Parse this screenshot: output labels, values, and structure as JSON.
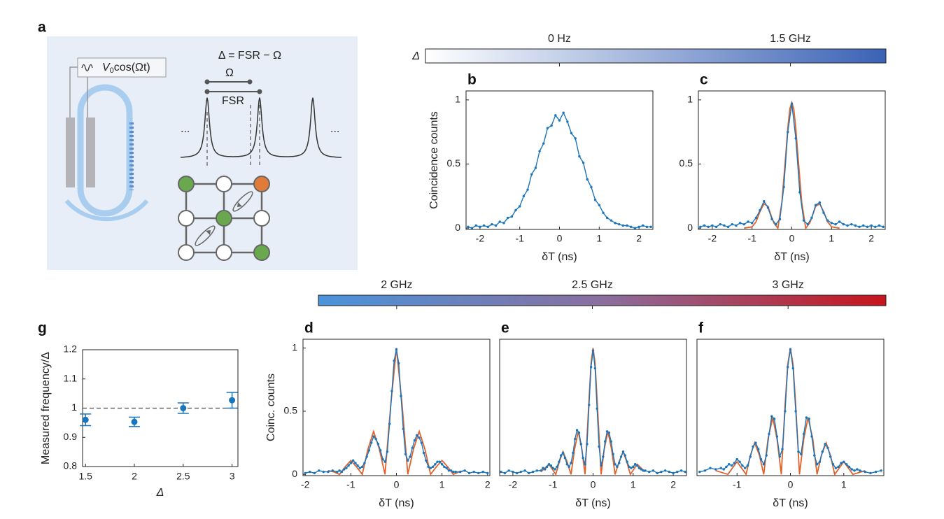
{
  "diagram": {
    "label": "a",
    "modulation_symbol": "V",
    "modulation_subscript": "0",
    "modulation_text": "cos(Ωt)",
    "detuning": "Δ = FSR − Ω",
    "omega": "Ω",
    "fsr": "FSR",
    "ellipsis_left": "...",
    "ellipsis_right": "..."
  },
  "chart_data": [
    {
      "type": "colorbar",
      "title": "Δ",
      "colors": [
        "#ffffff",
        "#3a62b5"
      ],
      "xlim": [
        -0.87,
        2.12
      ],
      "xticks": [
        {
          "value": 0,
          "label": "0 Hz"
        },
        {
          "value": 1.5,
          "label": "1.5 GHz"
        }
      ]
    },
    {
      "type": "line",
      "label": "b",
      "xlabel": "δT (ns)",
      "ylabel": "Coincidence counts",
      "xlim": [
        -2.35,
        2.35
      ],
      "ylim": [
        -0.01,
        1.07
      ],
      "xticks": [
        -2,
        -1,
        0,
        1,
        2
      ],
      "yticks": [
        0,
        0.5,
        1
      ],
      "series": [
        {
          "color": "#1b75bb",
          "markers": true,
          "x": [
            -2.3,
            -2.2,
            -2.1,
            -2,
            -1.9,
            -1.8,
            -1.7,
            -1.6,
            -1.5,
            -1.4,
            -1.3,
            -1.2,
            -1.1,
            -1,
            -0.9,
            -0.8,
            -0.7,
            -0.6,
            -0.5,
            -0.4,
            -0.3,
            -0.2,
            -0.1,
            0,
            0.1,
            0.2,
            0.3,
            0.4,
            0.5,
            0.6,
            0.7,
            0.8,
            0.9,
            1,
            1.1,
            1.2,
            1.3,
            1.4,
            1.5,
            1.6,
            1.7,
            1.8,
            1.9,
            2,
            2.1,
            2.2,
            2.3
          ],
          "values": [
            0.01,
            0,
            0.02,
            0.01,
            0.02,
            0.01,
            0.03,
            0.02,
            0.05,
            0.04,
            0.08,
            0.09,
            0.14,
            0.17,
            0.25,
            0.3,
            0.42,
            0.47,
            0.6,
            0.66,
            0.78,
            0.8,
            0.88,
            0.84,
            0.9,
            0.83,
            0.74,
            0.7,
            0.56,
            0.51,
            0.38,
            0.32,
            0.22,
            0.18,
            0.12,
            0.08,
            0.06,
            0.04,
            0.03,
            0.02,
            0.02,
            0.01,
            0,
            0.01,
            0.02,
            0.01,
            0.01
          ]
        }
      ]
    },
    {
      "type": "line",
      "label": "c",
      "xlabel": "δT (ns)",
      "xlim": [
        -2.35,
        2.35
      ],
      "ylim": [
        -0.01,
        1.07
      ],
      "xticks": [
        -2,
        -1,
        0,
        1,
        2
      ],
      "yticks": [
        0,
        0.5,
        1
      ],
      "series": [
        {
          "color": "#e0622a",
          "markers": false,
          "x": [
            -1.2,
            -1,
            -0.9,
            -0.8,
            -0.7,
            -0.6,
            -0.5,
            -0.45,
            -0.35,
            -0.25,
            -0.15,
            -0.1,
            -0.05,
            0,
            0.05,
            0.1,
            0.15,
            0.25,
            0.35,
            0.45,
            0.5,
            0.6,
            0.7,
            0.8,
            0.9,
            1,
            1.2
          ],
          "values": [
            0,
            0.01,
            0.05,
            0.13,
            0.19,
            0.17,
            0.08,
            0.04,
            0,
            0.2,
            0.58,
            0.78,
            0.93,
            0.98,
            0.93,
            0.78,
            0.58,
            0.2,
            0,
            0.04,
            0.08,
            0.17,
            0.19,
            0.13,
            0.05,
            0.01,
            0
          ]
        },
        {
          "color": "#1b75bb",
          "markers": true,
          "x": [
            -2.3,
            -2.2,
            -2.1,
            -2,
            -1.9,
            -1.8,
            -1.7,
            -1.6,
            -1.5,
            -1.4,
            -1.3,
            -1.2,
            -1.1,
            -1,
            -0.9,
            -0.8,
            -0.7,
            -0.6,
            -0.5,
            -0.4,
            -0.3,
            -0.2,
            -0.1,
            0,
            0.1,
            0.2,
            0.3,
            0.4,
            0.5,
            0.6,
            0.7,
            0.8,
            0.9,
            1,
            1.1,
            1.2,
            1.3,
            1.4,
            1.5,
            1.6,
            1.7,
            1.8,
            1.9,
            2,
            2.1,
            2.2,
            2.3
          ],
          "values": [
            0.01,
            0.02,
            0.01,
            0.02,
            0.01,
            0.03,
            0.02,
            0.01,
            0.03,
            0.02,
            0.04,
            0.03,
            0.05,
            0.04,
            0.08,
            0.14,
            0.21,
            0.16,
            0.07,
            0.03,
            0.07,
            0.32,
            0.75,
            0.97,
            0.7,
            0.28,
            0.06,
            0.03,
            0.08,
            0.18,
            0.2,
            0.12,
            0.06,
            0.04,
            0.03,
            0.05,
            0.03,
            0.02,
            0.03,
            0.02,
            0.01,
            0.02,
            0.01,
            0.02,
            0.01,
            0.02,
            0.01
          ]
        }
      ]
    },
    {
      "type": "colorbar",
      "colors": [
        "#4a94dc",
        "#8a6f9e",
        "#c8141c"
      ],
      "xlim": [
        1.8,
        3.25
      ],
      "xticks": [
        {
          "value": 2,
          "label": "2 GHz"
        },
        {
          "value": 2.5,
          "label": "2.5 GHz"
        },
        {
          "value": 3,
          "label": "3 GHz"
        }
      ]
    },
    {
      "type": "line",
      "label": "d",
      "xlabel": "δT (ns)",
      "ylabel": "Coinc. counts",
      "xlim": [
        -2.05,
        2.05
      ],
      "ylim": [
        -0.01,
        1.07
      ],
      "xticks": [
        -2,
        -1,
        0,
        1,
        2
      ],
      "yticks": [
        0,
        0.5,
        1
      ],
      "series": [
        {
          "color": "#e0622a",
          "markers": false,
          "x": [
            -1.5,
            -1.375,
            -1.25,
            -1.125,
            -1,
            -0.875,
            -0.75,
            -0.625,
            -0.5,
            -0.375,
            -0.25,
            -0.125,
            0,
            0.125,
            0.25,
            0.375,
            0.5,
            0.625,
            0.75,
            0.875,
            1,
            1.125,
            1.25,
            1.375,
            1.5
          ],
          "values": [
            0.03,
            0.02,
            0,
            0.06,
            0.11,
            0.06,
            0,
            0.2,
            0.34,
            0.2,
            0,
            0.55,
            1,
            0.55,
            0,
            0.2,
            0.34,
            0.2,
            0,
            0.06,
            0.11,
            0.06,
            0,
            0.02,
            0.03
          ]
        },
        {
          "color": "#1b75bb",
          "markers": true,
          "x": [
            -2,
            -1.9,
            -1.8,
            -1.7,
            -1.6,
            -1.5,
            -1.4,
            -1.3,
            -1.25,
            -1.2,
            -1.15,
            -1.1,
            -1.05,
            -1,
            -0.95,
            -0.9,
            -0.85,
            -0.8,
            -0.75,
            -0.7,
            -0.65,
            -0.6,
            -0.55,
            -0.5,
            -0.45,
            -0.4,
            -0.35,
            -0.3,
            -0.25,
            -0.2,
            -0.15,
            -0.1,
            -0.05,
            0,
            0.05,
            0.1,
            0.15,
            0.2,
            0.25,
            0.3,
            0.35,
            0.4,
            0.45,
            0.5,
            0.55,
            0.6,
            0.65,
            0.7,
            0.75,
            0.8,
            0.85,
            0.9,
            0.95,
            1,
            1.05,
            1.1,
            1.15,
            1.2,
            1.25,
            1.3,
            1.4,
            1.5,
            1.6,
            1.7,
            1.8,
            1.9,
            2
          ],
          "values": [
            0.01,
            0.02,
            0.01,
            0.03,
            0.02,
            0.02,
            0.03,
            0.02,
            0.03,
            0.02,
            0.04,
            0.05,
            0.07,
            0.09,
            0.11,
            0.09,
            0.07,
            0.05,
            0.06,
            0.09,
            0.14,
            0.19,
            0.25,
            0.3,
            0.28,
            0.24,
            0.19,
            0.12,
            0.1,
            0.18,
            0.4,
            0.66,
            0.9,
            0.99,
            0.88,
            0.62,
            0.36,
            0.16,
            0.11,
            0.14,
            0.21,
            0.27,
            0.31,
            0.29,
            0.25,
            0.17,
            0.11,
            0.06,
            0.05,
            0.06,
            0.08,
            0.1,
            0.1,
            0.08,
            0.06,
            0.05,
            0.03,
            0.03,
            0.02,
            0.02,
            0.02,
            0.03,
            0.01,
            0.02,
            0.01,
            0.02,
            0.01
          ]
        }
      ]
    },
    {
      "type": "line",
      "label": "e",
      "xlabel": "δT (ns)",
      "xlim": [
        -2.33,
        2.33
      ],
      "ylim": [
        -0.01,
        1.07
      ],
      "xticks": [
        -2,
        -1,
        0,
        1,
        2
      ],
      "series": [
        {
          "color": "#e0622a",
          "markers": false,
          "x": [
            -1.3,
            -1.1,
            -0.93,
            -0.84,
            -0.75,
            -0.65,
            -0.55,
            -0.46,
            -0.37,
            -0.28,
            -0.2,
            -0.1,
            -0.05,
            0,
            0.05,
            0.1,
            0.2,
            0.28,
            0.37,
            0.46,
            0.55,
            0.65,
            0.75,
            0.84,
            0.93,
            1.1,
            1.3
          ],
          "values": [
            0.02,
            0.08,
            0,
            0.1,
            0.18,
            0.1,
            0,
            0.2,
            0.34,
            0.2,
            0,
            0.6,
            0.88,
            1,
            0.88,
            0.6,
            0,
            0.2,
            0.34,
            0.2,
            0,
            0.1,
            0.18,
            0.1,
            0,
            0.08,
            0.02
          ]
        },
        {
          "color": "#1b75bb",
          "markers": true,
          "x": [
            -2.3,
            -2.2,
            -2.1,
            -2,
            -1.9,
            -1.8,
            -1.7,
            -1.6,
            -1.5,
            -1.4,
            -1.3,
            -1.25,
            -1.2,
            -1.15,
            -1.1,
            -1.05,
            -1,
            -0.95,
            -0.9,
            -0.85,
            -0.8,
            -0.75,
            -0.7,
            -0.65,
            -0.6,
            -0.55,
            -0.5,
            -0.45,
            -0.4,
            -0.35,
            -0.3,
            -0.25,
            -0.2,
            -0.15,
            -0.1,
            -0.05,
            0,
            0.05,
            0.1,
            0.15,
            0.2,
            0.25,
            0.3,
            0.35,
            0.4,
            0.45,
            0.5,
            0.55,
            0.6,
            0.65,
            0.7,
            0.75,
            0.8,
            0.85,
            0.9,
            0.95,
            1,
            1.05,
            1.1,
            1.15,
            1.2,
            1.25,
            1.3,
            1.4,
            1.5,
            1.6,
            1.7,
            1.8,
            1.9,
            2,
            2.1,
            2.2,
            2.3
          ],
          "values": [
            0.02,
            0.01,
            0.03,
            0.02,
            0.01,
            0.02,
            0.03,
            0.01,
            0.02,
            0.03,
            0.03,
            0.05,
            0.04,
            0.06,
            0.08,
            0.07,
            0.05,
            0.04,
            0.06,
            0.1,
            0.15,
            0.17,
            0.13,
            0.08,
            0.06,
            0.09,
            0.17,
            0.28,
            0.35,
            0.33,
            0.24,
            0.13,
            0.08,
            0.24,
            0.55,
            0.85,
            0.98,
            0.84,
            0.52,
            0.22,
            0.07,
            0.14,
            0.26,
            0.34,
            0.33,
            0.26,
            0.16,
            0.08,
            0.06,
            0.09,
            0.14,
            0.18,
            0.15,
            0.1,
            0.06,
            0.05,
            0.06,
            0.08,
            0.07,
            0.05,
            0.04,
            0.03,
            0.03,
            0.02,
            0.03,
            0.01,
            0.02,
            0.03,
            0.02,
            0.01,
            0.02,
            0.03,
            0.02
          ]
        }
      ]
    },
    {
      "type": "line",
      "label": "f",
      "xlabel": "δT (ns)",
      "xlim": [
        -1.75,
        1.75
      ],
      "ylim": [
        -0.01,
        1.07
      ],
      "xticks": [
        -1,
        0,
        1
      ],
      "series": [
        {
          "color": "#e0622a",
          "markers": false,
          "x": [
            -1.4,
            -1.17,
            -1,
            -0.83,
            -0.75,
            -0.67,
            -0.58,
            -0.5,
            -0.42,
            -0.33,
            -0.25,
            -0.17,
            -0.1,
            -0.05,
            0,
            0.05,
            0.1,
            0.17,
            0.25,
            0.33,
            0.42,
            0.5,
            0.58,
            0.67,
            0.75,
            0.83,
            1,
            1.17,
            1.4
          ],
          "values": [
            0.03,
            0,
            0.1,
            0,
            0.15,
            0.25,
            0.15,
            0,
            0.28,
            0.45,
            0.28,
            0,
            0.55,
            0.87,
            1,
            0.87,
            0.55,
            0,
            0.28,
            0.45,
            0.28,
            0,
            0.15,
            0.25,
            0.15,
            0,
            0.1,
            0,
            0.03
          ]
        },
        {
          "color": "#1b75bb",
          "markers": true,
          "x": [
            -1.7,
            -1.6,
            -1.5,
            -1.4,
            -1.3,
            -1.25,
            -1.2,
            -1.15,
            -1.1,
            -1.05,
            -1,
            -0.95,
            -0.9,
            -0.85,
            -0.8,
            -0.75,
            -0.7,
            -0.65,
            -0.6,
            -0.55,
            -0.5,
            -0.45,
            -0.4,
            -0.35,
            -0.3,
            -0.25,
            -0.2,
            -0.15,
            -0.1,
            -0.05,
            0,
            0.05,
            0.1,
            0.15,
            0.2,
            0.25,
            0.3,
            0.35,
            0.4,
            0.45,
            0.5,
            0.55,
            0.6,
            0.65,
            0.7,
            0.75,
            0.8,
            0.85,
            0.9,
            0.95,
            1,
            1.05,
            1.1,
            1.15,
            1.2,
            1.25,
            1.3,
            1.4,
            1.5,
            1.6,
            1.7
          ],
          "values": [
            0.02,
            0.03,
            0.05,
            0.04,
            0.05,
            0.04,
            0.06,
            0.08,
            0.07,
            0.09,
            0.12,
            0.1,
            0.07,
            0.05,
            0.07,
            0.14,
            0.22,
            0.25,
            0.2,
            0.12,
            0.08,
            0.15,
            0.32,
            0.46,
            0.44,
            0.3,
            0.14,
            0.2,
            0.5,
            0.85,
            0.99,
            0.84,
            0.5,
            0.18,
            0.16,
            0.32,
            0.45,
            0.44,
            0.3,
            0.15,
            0.08,
            0.1,
            0.18,
            0.24,
            0.21,
            0.14,
            0.08,
            0.05,
            0.06,
            0.09,
            0.1,
            0.08,
            0.06,
            0.04,
            0.03,
            0.04,
            0.03,
            0.02,
            0.01,
            0.02,
            0.03
          ]
        }
      ]
    },
    {
      "type": "scatter",
      "label": "g",
      "xlabel": "Δ",
      "ylabel": "Measured frequency/Δ",
      "color": "#1b75bb",
      "x": [
        1.5,
        2,
        2.5,
        3
      ],
      "values": [
        0.96,
        0.953,
        1.0,
        1.027
      ],
      "errors": [
        0.02,
        0.016,
        0.018,
        0.027
      ],
      "reference_line": 1,
      "xlim": [
        1.47,
        3.06
      ],
      "ylim": [
        0.8,
        1.2
      ],
      "xticks": [
        1.5,
        2,
        2.5,
        3
      ],
      "yticks": [
        0.8,
        0.9,
        1,
        1.1,
        1.2
      ]
    }
  ]
}
